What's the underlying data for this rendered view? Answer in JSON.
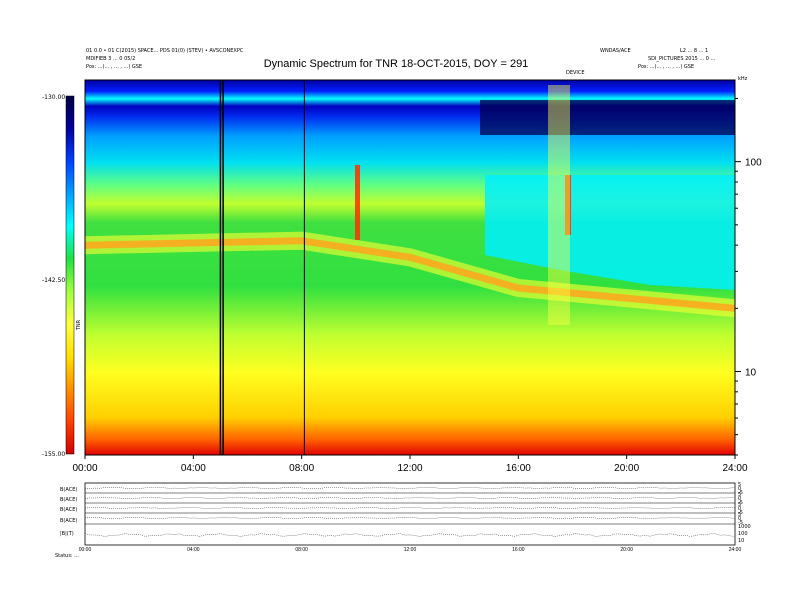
{
  "header": {
    "title": "Dynamic Spectrum for TNR 18-OCT-2015, DOY = 291",
    "left_line1": "01 0.0 • 01 C(2015) SPACE... PDS 01(0) (STEV) • AVSCONEXPC",
    "left_line2": "MDIFIEB 3 ... 0 05/2",
    "left_pos": "Pos:   ...(... , ... , ...) GSE",
    "right_line1": "WNDAS/ACE",
    "right_line2": "L2 ... 8 ... 1",
    "right_line3": "SDI_PICTURES 2015 ... 0 ...",
    "right_pos": "Pos:   ...(... , ... , ...) GSE",
    "event_label": "DEVICE",
    "freq_unit": "kHz"
  },
  "colorbar": {
    "top_label": "-130.00",
    "mid_label": "-142.50",
    "bottom_label": "-155.00",
    "unit_label": "TNR",
    "colors": [
      "#d00000",
      "#ff4000",
      "#ff9000",
      "#ffe000",
      "#ffff40",
      "#a0ff40",
      "#20e040",
      "#00ffff",
      "#00a0ff",
      "#0040ff",
      "#0000a0",
      "#000040"
    ]
  },
  "chart_data": {
    "type": "heatmap",
    "title": "Dynamic Spectrum for TNR 18-OCT-2015, DOY = 291",
    "x_tick_labels": [
      "00:00",
      "04:00",
      "08:00",
      "12:00",
      "16:00",
      "20:00",
      "24:00"
    ],
    "x_range_hours": [
      0,
      24
    ],
    "y_scale": "log",
    "y_range_khz": [
      4,
      245
    ],
    "y_tick_labels": [
      "100",
      "10"
    ],
    "y_ticks_khz": [
      100,
      10
    ],
    "color_range_db": [
      -155,
      -130
    ],
    "vertical_lines_hours": [
      5.0,
      5.1,
      8.1
    ],
    "features": [
      {
        "name": "emission band (red/yellow)",
        "t_hours": [
          0,
          8,
          12,
          16,
          24
        ],
        "f_khz": [
          40,
          42,
          35,
          25,
          20
        ]
      },
      {
        "name": "cyan upper region",
        "f_khz_min": 35
      }
    ]
  },
  "panels": {
    "labels": [
      "B(ACE)",
      "B(ACE)",
      "B(ACE)",
      "B(ACE)",
      "|B|(T)"
    ],
    "right_scale": [
      [
        "5",
        "0",
        "-5"
      ],
      [
        "5",
        "0",
        "-5"
      ],
      [
        "5",
        "0",
        "-5"
      ],
      [
        "5",
        "0",
        "-5"
      ],
      [
        "1000",
        "100",
        "10"
      ]
    ],
    "x_tick_labels": [
      "00:00",
      "04:00",
      "08:00",
      "12:00",
      "16:00",
      "20:00",
      "24:00"
    ],
    "footer_left": "Status:  ..."
  }
}
